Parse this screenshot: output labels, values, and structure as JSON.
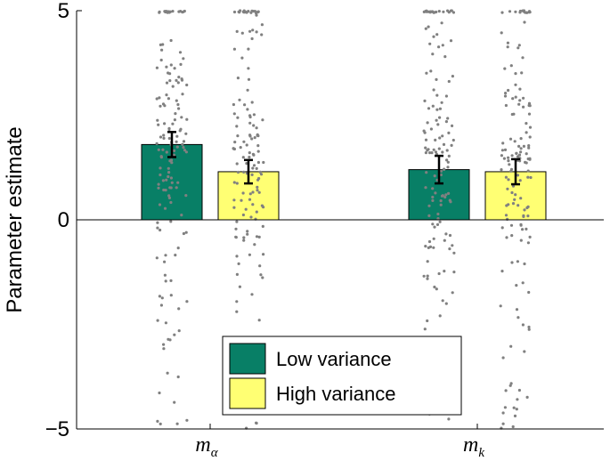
{
  "chart_data": {
    "type": "bar",
    "ylabel": "Parameter estimate",
    "xlabel": "",
    "ylim": [
      -5,
      5
    ],
    "yticks": [
      -5,
      0,
      5
    ],
    "ytick_labels": [
      "−5",
      "0",
      "5"
    ],
    "categories": [
      {
        "base": "m",
        "sub": "α"
      },
      {
        "base": "m",
        "sub": "k"
      }
    ],
    "series": [
      {
        "name": "Low variance",
        "color": "#087f66",
        "values": [
          1.8,
          1.2
        ],
        "errors": [
          0.3,
          0.33
        ]
      },
      {
        "name": "High variance",
        "color": "#ffff73",
        "values": [
          1.15,
          1.15
        ],
        "errors": [
          0.28,
          0.3
        ]
      }
    ],
    "points_color": "#808080",
    "points_range": [
      -5,
      5
    ],
    "legend_position": "bottom-center"
  }
}
